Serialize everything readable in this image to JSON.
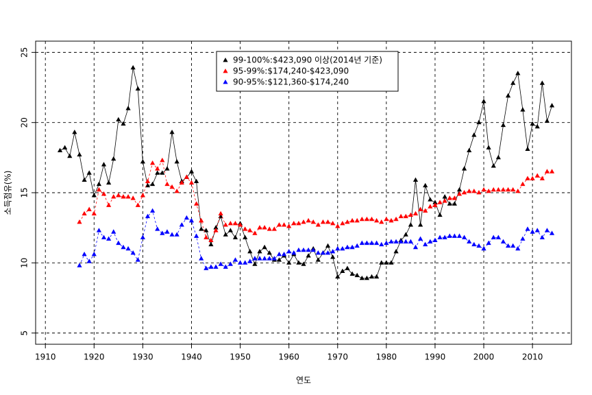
{
  "chart_data": {
    "type": "line",
    "x_label": "연도",
    "y_label": "소득점유(%)",
    "xlim": [
      1908,
      2018
    ],
    "ylim": [
      4.2,
      25.8
    ],
    "xticks": [
      1910,
      1920,
      1930,
      1940,
      1950,
      1960,
      1970,
      1980,
      1990,
      2000,
      2010
    ],
    "yticks": [
      5,
      10,
      15,
      20,
      25
    ],
    "grid": true,
    "legend": "top",
    "series": [
      {
        "name": "99-100%:$423,090 이상(2014년 기준)",
        "color": "#000000",
        "x": [
          1913,
          1914,
          1915,
          1916,
          1917,
          1918,
          1919,
          1920,
          1921,
          1922,
          1923,
          1924,
          1925,
          1926,
          1927,
          1928,
          1929,
          1930,
          1931,
          1932,
          1933,
          1934,
          1935,
          1936,
          1937,
          1938,
          1939,
          1940,
          1941,
          1942,
          1943,
          1944,
          1945,
          1946,
          1947,
          1948,
          1949,
          1950,
          1951,
          1952,
          1953,
          1954,
          1955,
          1956,
          1957,
          1958,
          1959,
          1960,
          1961,
          1962,
          1963,
          1964,
          1965,
          1966,
          1967,
          1968,
          1969,
          1970,
          1971,
          1972,
          1973,
          1974,
          1975,
          1976,
          1977,
          1978,
          1979,
          1980,
          1981,
          1982,
          1983,
          1984,
          1985,
          1986,
          1987,
          1988,
          1989,
          1990,
          1991,
          1992,
          1993,
          1994,
          1995,
          1996,
          1997,
          1998,
          1999,
          2000,
          2001,
          2002,
          2003,
          2004,
          2005,
          2006,
          2007,
          2008,
          2009,
          2010,
          2011,
          2012,
          2013,
          2014
        ],
        "values": [
          18.0,
          18.2,
          17.6,
          19.3,
          17.7,
          15.9,
          16.4,
          14.8,
          15.6,
          17.0,
          15.7,
          17.4,
          20.2,
          19.9,
          21.0,
          23.9,
          22.4,
          17.2,
          15.5,
          15.6,
          16.4,
          16.4,
          16.7,
          19.3,
          17.2,
          15.8,
          16.1,
          16.5,
          15.8,
          12.4,
          12.3,
          11.3,
          12.5,
          13.3,
          12.0,
          12.3,
          11.8,
          12.8,
          11.8,
          10.8,
          9.9,
          10.8,
          11.1,
          10.7,
          10.2,
          10.2,
          10.5,
          10.0,
          10.6,
          10.0,
          9.9,
          10.5,
          11.0,
          10.2,
          10.7,
          11.2,
          10.4,
          9.0,
          9.4,
          9.6,
          9.2,
          9.1,
          8.9,
          8.9,
          9.0,
          9.0,
          10.0,
          10.0,
          10.0,
          10.8,
          11.6,
          12.0,
          12.7,
          15.9,
          12.7,
          15.5,
          14.5,
          14.3,
          13.4,
          14.7,
          14.2,
          14.2,
          15.2,
          16.7,
          18.0,
          19.1,
          20.0,
          21.5,
          18.2,
          16.9,
          17.5,
          19.8,
          21.9,
          22.8,
          23.5,
          20.9,
          18.1,
          19.9,
          19.7,
          22.8,
          20.1,
          21.2
        ]
      },
      {
        "name": "95-99%:$174,240-$423,090",
        "color": "#ff0000",
        "x": [
          1917,
          1918,
          1919,
          1920,
          1921,
          1922,
          1923,
          1924,
          1925,
          1926,
          1927,
          1928,
          1929,
          1930,
          1931,
          1932,
          1933,
          1934,
          1935,
          1936,
          1937,
          1938,
          1939,
          1940,
          1941,
          1942,
          1943,
          1944,
          1945,
          1946,
          1947,
          1948,
          1949,
          1950,
          1951,
          1952,
          1953,
          1954,
          1955,
          1956,
          1957,
          1958,
          1959,
          1960,
          1961,
          1962,
          1963,
          1964,
          1965,
          1966,
          1967,
          1968,
          1969,
          1970,
          1971,
          1972,
          1973,
          1974,
          1975,
          1976,
          1977,
          1978,
          1979,
          1980,
          1981,
          1982,
          1983,
          1984,
          1985,
          1986,
          1987,
          1988,
          1989,
          1990,
          1991,
          1992,
          1993,
          1994,
          1995,
          1996,
          1997,
          1998,
          1999,
          2000,
          2001,
          2002,
          2003,
          2004,
          2005,
          2006,
          2007,
          2008,
          2009,
          2010,
          2011,
          2012,
          2013,
          2014
        ],
        "values": [
          12.9,
          13.5,
          13.8,
          13.5,
          15.2,
          14.9,
          14.1,
          14.7,
          14.8,
          14.7,
          14.7,
          14.6,
          14.1,
          14.8,
          15.8,
          17.1,
          16.7,
          17.3,
          15.6,
          15.4,
          15.1,
          15.7,
          16.1,
          15.7,
          14.2,
          13.0,
          11.8,
          11.6,
          12.3,
          13.5,
          12.7,
          12.8,
          12.8,
          12.7,
          12.4,
          12.3,
          12.1,
          12.5,
          12.5,
          12.4,
          12.4,
          12.7,
          12.7,
          12.6,
          12.8,
          12.8,
          12.9,
          13.0,
          12.9,
          12.7,
          12.9,
          12.9,
          12.8,
          12.6,
          12.8,
          12.9,
          13.0,
          13.0,
          13.1,
          13.1,
          13.1,
          13.0,
          12.9,
          13.1,
          13.0,
          13.1,
          13.3,
          13.3,
          13.4,
          13.5,
          13.8,
          13.7,
          14.0,
          14.1,
          14.3,
          14.4,
          14.6,
          14.6,
          14.9,
          15.0,
          15.1,
          15.1,
          15.0,
          15.2,
          15.1,
          15.2,
          15.2,
          15.2,
          15.2,
          15.2,
          15.1,
          15.6,
          16.0,
          16.0,
          16.2,
          16.0,
          16.5,
          16.5
        ]
      },
      {
        "name": "90-95%:$121,360-$174,240",
        "color": "#0000ff",
        "x": [
          1917,
          1918,
          1919,
          1920,
          1921,
          1922,
          1923,
          1924,
          1925,
          1926,
          1927,
          1928,
          1929,
          1930,
          1931,
          1932,
          1933,
          1934,
          1935,
          1936,
          1937,
          1938,
          1939,
          1940,
          1941,
          1942,
          1943,
          1944,
          1945,
          1946,
          1947,
          1948,
          1949,
          1950,
          1951,
          1952,
          1953,
          1954,
          1955,
          1956,
          1957,
          1958,
          1959,
          1960,
          1961,
          1962,
          1963,
          1964,
          1965,
          1966,
          1967,
          1968,
          1969,
          1970,
          1971,
          1972,
          1973,
          1974,
          1975,
          1976,
          1977,
          1978,
          1979,
          1980,
          1981,
          1982,
          1983,
          1984,
          1985,
          1986,
          1987,
          1988,
          1989,
          1990,
          1991,
          1992,
          1993,
          1994,
          1995,
          1996,
          1997,
          1998,
          1999,
          2000,
          2001,
          2002,
          2003,
          2004,
          2005,
          2006,
          2007,
          2008,
          2009,
          2010,
          2011,
          2012,
          2013,
          2014
        ],
        "values": [
          9.8,
          10.6,
          10.1,
          10.6,
          12.3,
          11.8,
          11.7,
          12.2,
          11.4,
          11.1,
          11.0,
          10.7,
          10.2,
          11.8,
          13.3,
          13.7,
          12.4,
          12.1,
          12.2,
          12.0,
          12.0,
          12.7,
          13.2,
          13.0,
          11.9,
          10.3,
          9.6,
          9.7,
          9.7,
          9.9,
          9.7,
          9.9,
          10.2,
          10.0,
          10.0,
          10.1,
          10.3,
          10.3,
          10.3,
          10.3,
          10.3,
          10.6,
          10.6,
          10.8,
          10.7,
          10.9,
          10.9,
          10.9,
          10.9,
          10.7,
          10.7,
          10.7,
          10.8,
          11.0,
          11.0,
          11.1,
          11.1,
          11.2,
          11.4,
          11.4,
          11.4,
          11.4,
          11.3,
          11.4,
          11.5,
          11.5,
          11.5,
          11.5,
          11.5,
          11.1,
          11.7,
          11.3,
          11.5,
          11.6,
          11.8,
          11.8,
          11.9,
          11.9,
          11.9,
          11.8,
          11.5,
          11.3,
          11.2,
          11.0,
          11.4,
          11.8,
          11.8,
          11.5,
          11.2,
          11.2,
          11.0,
          11.7,
          12.4,
          12.2,
          12.3,
          11.8,
          12.3,
          12.1
        ]
      }
    ]
  }
}
